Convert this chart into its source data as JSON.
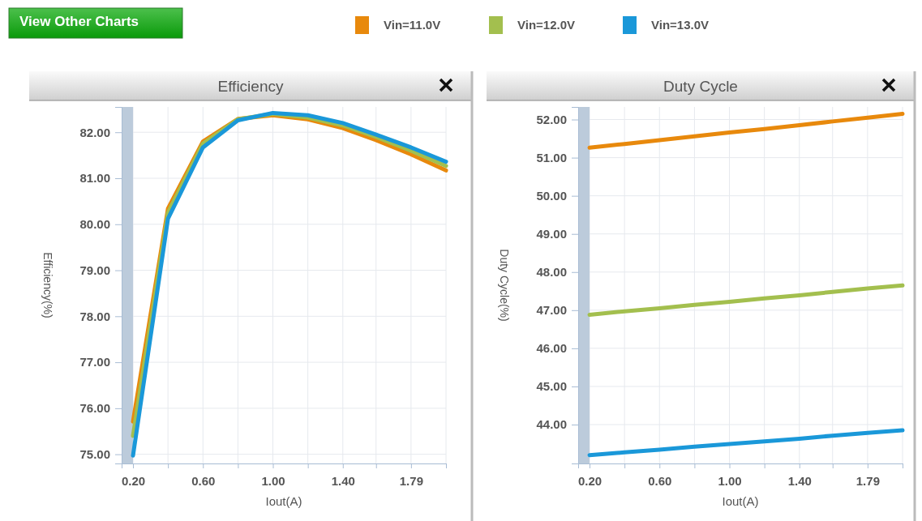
{
  "chart_data": [
    {
      "type": "line",
      "title": "Efficiency",
      "xlabel": "Iout(A)",
      "ylabel": "Efficiency(%)",
      "annotations": [
        "View Other Charts"
      ],
      "legend": "top",
      "grid": true,
      "marker": "none",
      "line_style": "solid",
      "x": [
        0.2,
        0.4,
        0.6,
        0.8,
        1.0,
        1.2,
        1.4,
        1.59,
        1.79,
        1.99
      ],
      "xlim": [
        0.135,
        1.99
      ],
      "xticks": [
        {
          "value": 0.2,
          "label": "0.20"
        },
        {
          "value": 0.4,
          "label": null
        },
        {
          "value": 0.6,
          "label": "0.60"
        },
        {
          "value": 0.8,
          "label": null
        },
        {
          "value": 1.0,
          "label": "1.00"
        },
        {
          "value": 1.2,
          "label": null
        },
        {
          "value": 1.4,
          "label": "1.40"
        },
        {
          "value": 1.59,
          "label": null
        },
        1.79,
        {
          "value": 1.99,
          "label": null
        }
      ],
      "ylim": [
        74.8,
        82.55
      ],
      "yticks": [
        {
          "value": 75,
          "label": "75.00"
        },
        {
          "value": 76,
          "label": "76.00"
        },
        {
          "value": 77,
          "label": "77.00"
        },
        {
          "value": 78,
          "label": "78.00"
        },
        {
          "value": 79,
          "label": "79.00"
        },
        {
          "value": 80,
          "label": "80.00"
        },
        {
          "value": 81,
          "label": "81.00"
        },
        {
          "value": 82,
          "label": "82.00"
        }
      ],
      "bands": [
        {
          "axis": "x",
          "from": 0.135,
          "to": 0.2,
          "color": "#bccbdb"
        }
      ],
      "series": [
        {
          "name": "Vin=11.0V",
          "color": "#e8890c",
          "values": [
            75.71,
            80.34,
            81.8,
            82.29,
            82.37,
            82.28,
            82.09,
            81.83,
            81.52,
            81.17
          ]
        },
        {
          "name": "Vin=12.0V",
          "color": "#a3bf4e",
          "values": [
            75.4,
            80.25,
            81.75,
            82.28,
            82.4,
            82.32,
            82.15,
            81.9,
            81.6,
            81.27
          ]
        },
        {
          "name": "Vin=13.0V",
          "color": "#1a98d9",
          "values": [
            74.97,
            80.12,
            81.67,
            82.26,
            82.42,
            82.37,
            82.2,
            81.95,
            81.67,
            81.36
          ]
        }
      ]
    },
    {
      "type": "line",
      "title": "Duty Cycle",
      "xlabel": "Iout(A)",
      "ylabel": "Duty Cycle(%)",
      "grid": true,
      "marker": "none",
      "line_style": "solid",
      "x": [
        0.2,
        0.4,
        0.6,
        0.8,
        1.0,
        1.2,
        1.4,
        1.59,
        1.79,
        1.99
      ],
      "xlim": [
        0.135,
        1.99
      ],
      "xticks": [
        {
          "value": 0.2,
          "label": "0.20"
        },
        {
          "value": 0.4,
          "label": null
        },
        {
          "value": 0.6,
          "label": "0.60"
        },
        {
          "value": 0.8,
          "label": null
        },
        {
          "value": 1.0,
          "label": "1.00"
        },
        {
          "value": 1.2,
          "label": null
        },
        {
          "value": 1.4,
          "label": "1.40"
        },
        {
          "value": 1.59,
          "label": null
        },
        1.79,
        {
          "value": 1.99,
          "label": null
        }
      ],
      "ylim": [
        42.98,
        52.33
      ],
      "yticks": [
        {
          "value": 44,
          "label": "44.00"
        },
        {
          "value": 45,
          "label": "45.00"
        },
        {
          "value": 46,
          "label": "46.00"
        },
        {
          "value": 47,
          "label": "47.00"
        },
        {
          "value": 48,
          "label": "48.00"
        },
        {
          "value": 49,
          "label": "49.00"
        },
        {
          "value": 50,
          "label": "50.00"
        },
        {
          "value": 51,
          "label": "51.00"
        },
        {
          "value": 52,
          "label": "52.00"
        }
      ],
      "bands": [
        {
          "axis": "x",
          "from": 0.135,
          "to": 0.2,
          "color": "#bccbdb"
        }
      ],
      "series": [
        {
          "color": "#e8890c",
          "values": [
            51.26,
            51.36,
            51.46,
            51.56,
            51.66,
            51.75,
            51.85,
            51.95,
            52.05,
            52.15
          ]
        },
        {
          "color": "#a3bf4e",
          "values": [
            46.88,
            46.97,
            47.05,
            47.14,
            47.22,
            47.31,
            47.39,
            47.48,
            47.57,
            47.65
          ]
        },
        {
          "color": "#1a98d9",
          "values": [
            43.2,
            43.27,
            43.34,
            43.42,
            43.49,
            43.56,
            43.63,
            43.71,
            43.78,
            43.85
          ]
        }
      ]
    }
  ]
}
